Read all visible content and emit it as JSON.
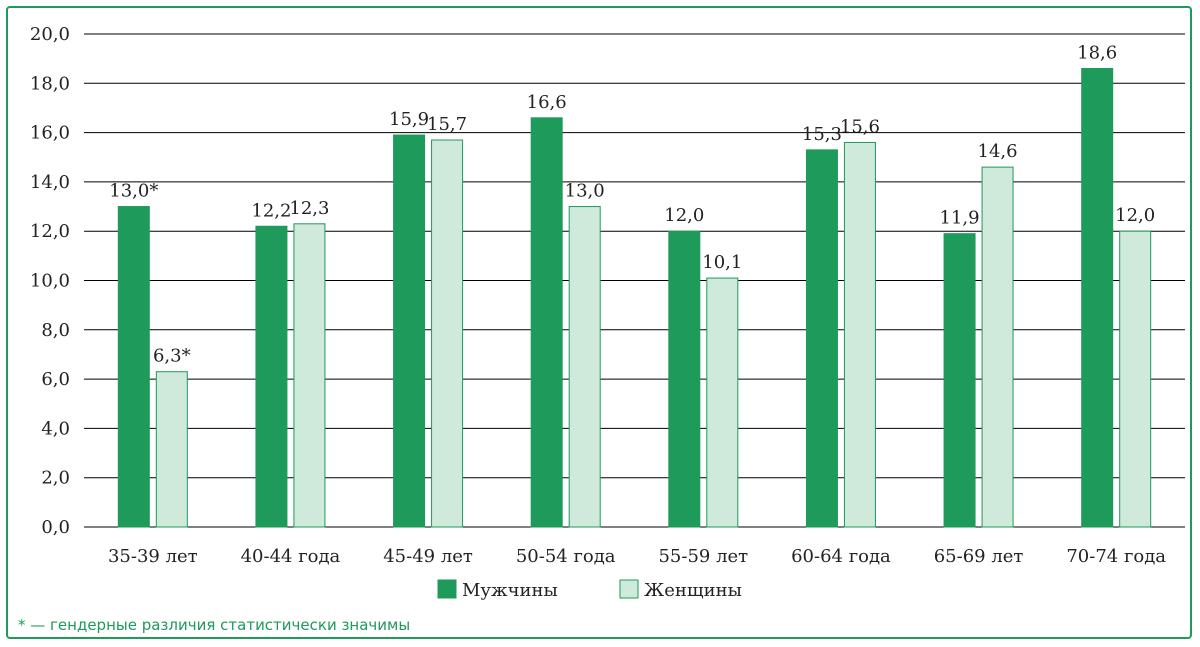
{
  "chart_data": {
    "type": "bar",
    "categories": [
      "35-39 лет",
      "40-44 года",
      "45-49 лет",
      "50-54 года",
      "55-59 лет",
      "60-64 года",
      "65-69 лет",
      "70-74 года"
    ],
    "series": [
      {
        "name": "Мужчины",
        "color": "#1e9a5a",
        "values": [
          13.0,
          12.2,
          15.9,
          16.6,
          12.0,
          15.3,
          11.9,
          18.6
        ],
        "labels": [
          "13,0*",
          "12,2",
          "15,9",
          "16,6",
          "12,0",
          "15,3",
          "11,9",
          "18,6"
        ]
      },
      {
        "name": "Женщины",
        "color": "#cfe9da",
        "values": [
          6.3,
          12.3,
          15.7,
          13.0,
          10.1,
          15.6,
          14.6,
          12.0
        ],
        "labels": [
          "6,3*",
          "12,3",
          "15,7",
          "13,0",
          "10,1",
          "15,6",
          "14,6",
          "12,0"
        ]
      }
    ],
    "ylim": [
      0,
      20
    ],
    "yticks": [
      "0,0",
      "2,0",
      "4,0",
      "6,0",
      "8,0",
      "10,0",
      "12,0",
      "14,0",
      "16,0",
      "18,0",
      "20,0"
    ],
    "grid": true,
    "legend_position": "bottom"
  },
  "footnote": "* — гендерные различия статистически значимы",
  "colors": {
    "border": "#1e9a5a",
    "grid": "#000000"
  }
}
